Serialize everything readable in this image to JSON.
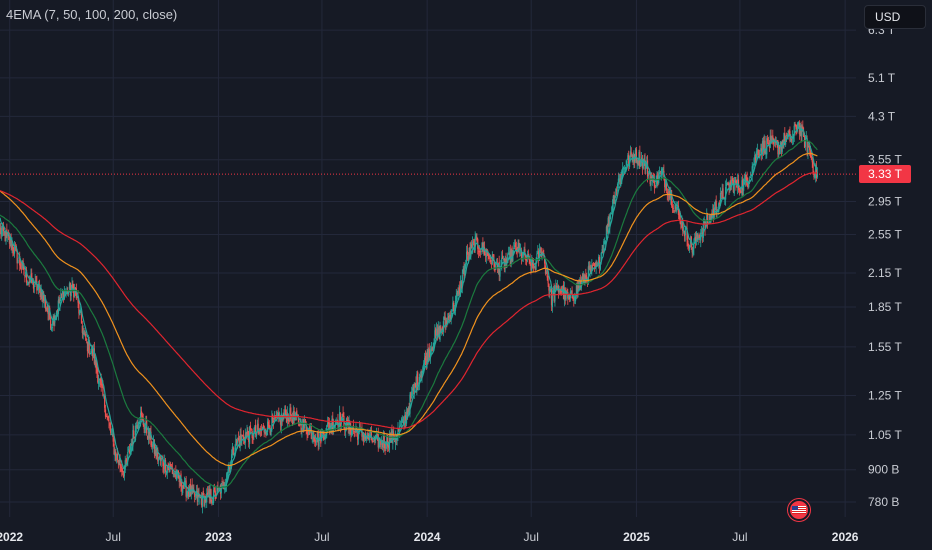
{
  "indicator": {
    "label": "4EMA (7, 50, 100, 200, close)"
  },
  "currency": {
    "label": "USD"
  },
  "current_price": {
    "label": "3.33 T",
    "value": 3.33
  },
  "colors": {
    "background": "#161a25",
    "grid": "#23283a",
    "up": "#26a69a",
    "down": "#ef5350",
    "ema_7": "#26a69a",
    "ema_50": "#1b7a3e",
    "ema_100": "#f0921e",
    "ema_200": "#e0252f",
    "price_line": "#f23645",
    "text": "#c9ccd3"
  },
  "chart_data": {
    "type": "candlestick",
    "y_scale": "log",
    "y_unit": "T",
    "ylim": [
      0.73,
      7.2
    ],
    "xlim": [
      "2021-12-15",
      "2026-01-20"
    ],
    "y_ticks": [
      {
        "label": "6.3 T",
        "value": 6.3
      },
      {
        "label": "5.1 T",
        "value": 5.1
      },
      {
        "label": "4.3 T",
        "value": 4.3
      },
      {
        "label": "3.55 T",
        "value": 3.55
      },
      {
        "label": "2.95 T",
        "value": 2.95
      },
      {
        "label": "2.55 T",
        "value": 2.55
      },
      {
        "label": "2.15 T",
        "value": 2.15
      },
      {
        "label": "1.85 T",
        "value": 1.85
      },
      {
        "label": "1.55 T",
        "value": 1.55
      },
      {
        "label": "1.25 T",
        "value": 1.25
      },
      {
        "label": "1.05 T",
        "value": 1.05
      },
      {
        "label": "900 B",
        "value": 0.9
      },
      {
        "label": "780 B",
        "value": 0.78
      }
    ],
    "x_ticks": [
      {
        "label": "2022",
        "date": "2022-01-01",
        "bold": true
      },
      {
        "label": "Jul",
        "date": "2022-07-01",
        "bold": false
      },
      {
        "label": "2023",
        "date": "2023-01-01",
        "bold": true
      },
      {
        "label": "Jul",
        "date": "2023-07-01",
        "bold": false
      },
      {
        "label": "2024",
        "date": "2024-01-01",
        "bold": true
      },
      {
        "label": "Jul",
        "date": "2024-07-01",
        "bold": false
      },
      {
        "label": "2025",
        "date": "2025-01-01",
        "bold": true
      },
      {
        "label": "Jul",
        "date": "2025-07-01",
        "bold": false
      },
      {
        "label": "2026",
        "date": "2026-01-01",
        "bold": true
      }
    ],
    "price_path": [
      [
        "2021-12-15",
        2.6
      ],
      [
        "2022-01-04",
        2.45
      ],
      [
        "2022-01-28",
        2.12
      ],
      [
        "2022-02-25",
        1.98
      ],
      [
        "2022-03-15",
        1.72
      ],
      [
        "2022-04-05",
        1.98
      ],
      [
        "2022-04-25",
        2.0
      ],
      [
        "2022-05-12",
        1.6
      ],
      [
        "2022-05-27",
        1.5
      ],
      [
        "2022-06-16",
        1.2
      ],
      [
        "2022-07-05",
        0.96
      ],
      [
        "2022-07-20",
        0.89
      ],
      [
        "2022-08-05",
        1.05
      ],
      [
        "2022-08-16",
        1.15
      ],
      [
        "2022-09-01",
        1.05
      ],
      [
        "2022-09-16",
        0.95
      ],
      [
        "2022-10-01",
        0.92
      ],
      [
        "2022-10-14",
        0.89
      ],
      [
        "2022-11-03",
        0.83
      ],
      [
        "2022-11-20",
        0.8
      ],
      [
        "2022-12-05",
        0.79
      ],
      [
        "2022-12-25",
        0.8
      ],
      [
        "2023-01-10",
        0.84
      ],
      [
        "2023-01-30",
        1.01
      ],
      [
        "2023-02-20",
        1.05
      ],
      [
        "2023-03-10",
        1.06
      ],
      [
        "2023-04-05",
        1.1
      ],
      [
        "2023-05-01",
        1.15
      ],
      [
        "2023-05-20",
        1.12
      ],
      [
        "2023-06-10",
        1.07
      ],
      [
        "2023-06-25",
        1.03
      ],
      [
        "2023-07-15",
        1.1
      ],
      [
        "2023-08-01",
        1.13
      ],
      [
        "2023-08-20",
        1.08
      ],
      [
        "2023-09-10",
        1.05
      ],
      [
        "2023-09-30",
        1.02
      ],
      [
        "2023-10-20",
        1.02
      ],
      [
        "2023-11-05",
        1.04
      ],
      [
        "2023-11-20",
        1.1
      ],
      [
        "2023-12-10",
        1.3
      ],
      [
        "2023-12-28",
        1.45
      ],
      [
        "2024-01-15",
        1.62
      ],
      [
        "2024-02-05",
        1.74
      ],
      [
        "2024-02-25",
        1.95
      ],
      [
        "2024-03-10",
        2.3
      ],
      [
        "2024-03-25",
        2.45
      ],
      [
        "2024-04-15",
        2.35
      ],
      [
        "2024-05-01",
        2.2
      ],
      [
        "2024-05-20",
        2.25
      ],
      [
        "2024-06-05",
        2.4
      ],
      [
        "2024-06-20",
        2.3
      ],
      [
        "2024-07-05",
        2.2
      ],
      [
        "2024-07-20",
        2.4
      ],
      [
        "2024-08-05",
        1.92
      ],
      [
        "2024-08-20",
        2.02
      ],
      [
        "2024-09-05",
        1.9
      ],
      [
        "2024-09-25",
        2.05
      ],
      [
        "2024-10-10",
        2.15
      ],
      [
        "2024-10-25",
        2.2
      ],
      [
        "2024-11-10",
        2.6
      ],
      [
        "2024-11-25",
        3.1
      ],
      [
        "2024-12-10",
        3.45
      ],
      [
        "2024-12-28",
        3.65
      ],
      [
        "2025-01-15",
        3.5
      ],
      [
        "2025-01-30",
        3.2
      ],
      [
        "2025-02-15",
        3.35
      ],
      [
        "2025-03-01",
        3.05
      ],
      [
        "2025-03-20",
        2.7
      ],
      [
        "2025-04-08",
        2.4
      ],
      [
        "2025-04-25",
        2.6
      ],
      [
        "2025-05-10",
        2.75
      ],
      [
        "2025-05-30",
        3.0
      ],
      [
        "2025-06-15",
        3.2
      ],
      [
        "2025-06-30",
        3.15
      ],
      [
        "2025-07-15",
        3.25
      ],
      [
        "2025-08-01",
        3.7
      ],
      [
        "2025-08-20",
        3.82
      ],
      [
        "2025-09-05",
        3.75
      ],
      [
        "2025-09-20",
        3.92
      ],
      [
        "2025-10-01",
        3.9
      ],
      [
        "2025-10-10",
        4.2
      ],
      [
        "2025-10-20",
        3.9
      ],
      [
        "2025-10-30",
        3.72
      ],
      [
        "2025-11-08",
        3.38
      ],
      [
        "2025-11-14",
        3.33
      ]
    ]
  }
}
